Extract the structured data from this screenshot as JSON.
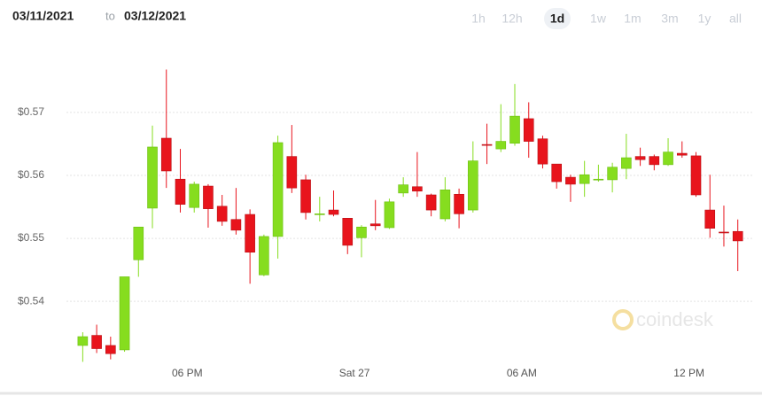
{
  "chart_data": {
    "type": "candlestick",
    "date_from": "03/11/2021",
    "date_sep": "to",
    "date_to": "03/12/2021",
    "ranges": [
      "1h",
      "12h",
      "1d",
      "1w",
      "1m",
      "3m",
      "1y",
      "all"
    ],
    "selected_range": "1d",
    "watermark": "coindesk",
    "up_color": "#86dd1f",
    "down_color": "#e8141c",
    "grid": true,
    "x": [
      14.25,
      14.75,
      15.25,
      15.75,
      16.25,
      16.75,
      17.25,
      17.75,
      18.25,
      18.75,
      19.25,
      19.75,
      20.25,
      20.75,
      21.25,
      21.75,
      22.25,
      22.75,
      23.25,
      23.75,
      24.25,
      24.75,
      25.25,
      25.75,
      26.25,
      26.75,
      27.25,
      27.75,
      28.25,
      28.75,
      29.25,
      29.75,
      30.25,
      30.75,
      31.25,
      31.75,
      32.25,
      32.75,
      33.25,
      33.75,
      34.25,
      34.75,
      35.25,
      35.75,
      36.25,
      36.75,
      37.25,
      37.75
    ],
    "open": [
      0.533,
      0.5346,
      0.533,
      0.5323,
      0.5466,
      0.5548,
      0.5659,
      0.5594,
      0.5549,
      0.5583,
      0.5551,
      0.553,
      0.5538,
      0.5442,
      0.5503,
      0.563,
      0.5593,
      0.5538,
      0.5545,
      0.5532,
      0.5501,
      0.5523,
      0.5517,
      0.5572,
      0.5582,
      0.5569,
      0.5531,
      0.557,
      0.5545,
      0.5649,
      0.5642,
      0.5651,
      0.569,
      0.5658,
      0.5618,
      0.5597,
      0.5587,
      0.5593,
      0.5593,
      0.5611,
      0.563,
      0.563,
      0.5617,
      0.5635,
      0.5631,
      0.5545,
      0.551,
      0.5511
    ],
    "high": [
      0.5351,
      0.5363,
      0.5344,
      0.5439,
      0.5518,
      0.5679,
      0.5768,
      0.5642,
      0.559,
      0.5586,
      0.5569,
      0.558,
      0.5546,
      0.5506,
      0.5663,
      0.568,
      0.5601,
      0.5566,
      0.5576,
      0.5532,
      0.5521,
      0.5561,
      0.5563,
      0.5597,
      0.5637,
      0.5571,
      0.5597,
      0.5579,
      0.5654,
      0.5682,
      0.5713,
      0.5745,
      0.5716,
      0.5663,
      0.5618,
      0.5601,
      0.5623,
      0.5617,
      0.562,
      0.5666,
      0.5644,
      0.5633,
      0.5659,
      0.5654,
      0.5637,
      0.5601,
      0.5552,
      0.553
    ],
    "low": [
      0.5304,
      0.5318,
      0.5308,
      0.532,
      0.5439,
      0.5516,
      0.558,
      0.5541,
      0.5541,
      0.5517,
      0.552,
      0.5506,
      0.5428,
      0.544,
      0.5468,
      0.5572,
      0.553,
      0.5527,
      0.5535,
      0.5475,
      0.547,
      0.5513,
      0.5515,
      0.5566,
      0.5566,
      0.5535,
      0.5527,
      0.5516,
      0.5541,
      0.5618,
      0.5637,
      0.5647,
      0.5628,
      0.5611,
      0.5579,
      0.5558,
      0.5566,
      0.559,
      0.5573,
      0.5594,
      0.5615,
      0.5608,
      0.5615,
      0.5628,
      0.5566,
      0.5501,
      0.5487,
      0.5448
    ],
    "close": [
      0.5344,
      0.5325,
      0.5317,
      0.5439,
      0.5518,
      0.5645,
      0.5607,
      0.5554,
      0.5586,
      0.5547,
      0.5527,
      0.5513,
      0.5478,
      0.5503,
      0.5652,
      0.558,
      0.5541,
      0.5539,
      0.5538,
      0.5489,
      0.5518,
      0.552,
      0.5558,
      0.5585,
      0.5575,
      0.5545,
      0.5577,
      0.5539,
      0.5623,
      0.5648,
      0.5654,
      0.5694,
      0.5654,
      0.5618,
      0.559,
      0.5586,
      0.5601,
      0.5594,
      0.5613,
      0.5628,
      0.5625,
      0.5617,
      0.5637,
      0.5632,
      0.5569,
      0.5516,
      0.5509,
      0.5496
    ],
    "xlim": [
      11.6,
      38.3
    ],
    "xticks": [
      {
        "value": 18,
        "label": "06 PM"
      },
      {
        "value": 24,
        "label": "Sat 27"
      },
      {
        "value": 30,
        "label": "06 AM"
      },
      {
        "value": 36,
        "label": "12 PM"
      }
    ],
    "ylim": [
      0.5299,
      0.5794
    ],
    "yticks": [
      {
        "value": 0.54,
        "label": "$0.54"
      },
      {
        "value": 0.55,
        "label": "$0.55"
      },
      {
        "value": 0.56,
        "label": "$0.56"
      },
      {
        "value": 0.57,
        "label": "$0.57"
      }
    ]
  }
}
